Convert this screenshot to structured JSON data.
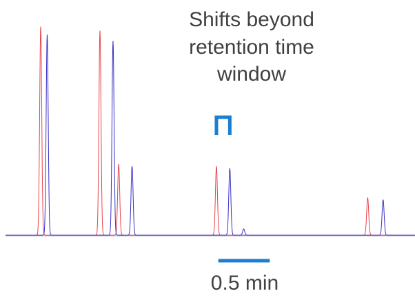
{
  "annotation": {
    "lines": [
      "Shifts beyond",
      "retention time",
      "window"
    ]
  },
  "scale_bar": {
    "label": "0.5 min",
    "minutes": 0.5
  },
  "colors": {
    "reference_trace": "#e8434c",
    "shifted_trace": "#3a2fc4",
    "accent": "#1a7fd0",
    "annotation_text": "#404040",
    "baseline": "#b0b0c8"
  },
  "chart_data": {
    "type": "line",
    "title": "",
    "xlabel": "",
    "ylabel": "",
    "x_unit": "min",
    "x_range_min": [
      0,
      3.98
    ],
    "y_range": [
      0,
      1.0
    ],
    "grid": false,
    "legend": "none",
    "retention_shift_min": 0.063,
    "series": [
      {
        "color": "#e8434c",
        "peaks": [
          {
            "rt": 0.342,
            "height": 1.0,
            "width": 0.01
          },
          {
            "rt": 0.918,
            "height": 0.98,
            "width": 0.01
          },
          {
            "rt": 1.1,
            "height": 0.34,
            "width": 0.01
          },
          {
            "rt": 2.05,
            "height": 0.33,
            "width": 0.01
          },
          {
            "rt": 3.52,
            "height": 0.18,
            "width": 0.01
          }
        ]
      },
      {
        "color": "#3a2fc4",
        "peaks": [
          {
            "rt": 0.405,
            "height": 0.96,
            "width": 0.01
          },
          {
            "rt": 1.045,
            "height": 0.93,
            "width": 0.01
          },
          {
            "rt": 1.23,
            "height": 0.33,
            "width": 0.01
          },
          {
            "rt": 2.18,
            "height": 0.32,
            "width": 0.01
          },
          {
            "rt": 2.315,
            "height": 0.03,
            "width": 0.01
          },
          {
            "rt": 3.67,
            "height": 0.17,
            "width": 0.01
          }
        ]
      }
    ],
    "annotated_peak_pair": {
      "from_rt": 2.05,
      "to_rt": 2.18
    }
  }
}
